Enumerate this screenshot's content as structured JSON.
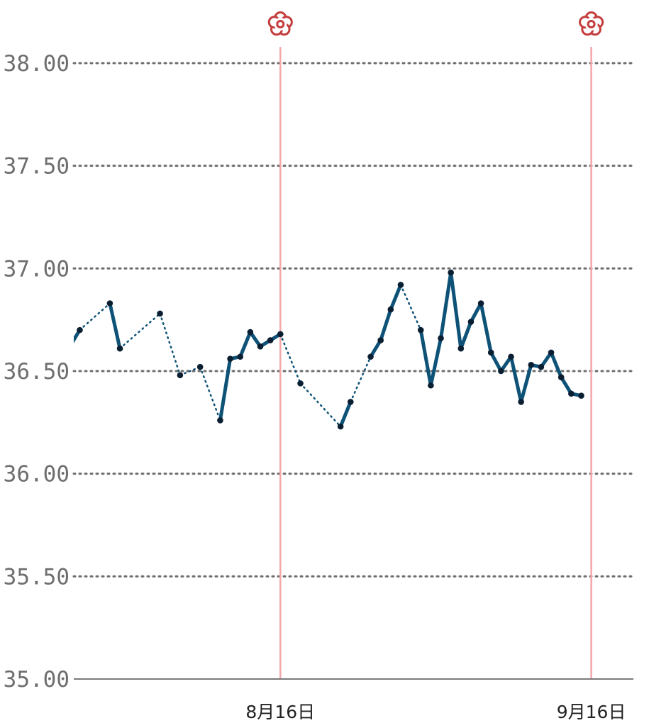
{
  "chart_data": {
    "type": "line",
    "title": "",
    "xlabel": "",
    "ylabel": "",
    "ylim": [
      35.0,
      38.0
    ],
    "yticks": [
      "35.00",
      "35.50",
      "36.00",
      "36.50",
      "37.00",
      "37.50",
      "38.00"
    ],
    "xrange": [
      "07-26",
      "09-21"
    ],
    "xticks": [
      {
        "date": "08-16",
        "label": "8月16日"
      },
      {
        "date": "09-16",
        "label": "9月16日"
      }
    ],
    "grid": {
      "horizontal": true,
      "style": "dotted"
    },
    "period_markers": [
      "08-16",
      "09-16"
    ],
    "line_color": "#0e5277",
    "point_color": "#0b1f33",
    "marker_color": "#f4a7ab",
    "flower_color": "#c43c3c",
    "series": [
      {
        "points": [
          {
            "x": "07-26",
            "y": 36.62
          },
          {
            "x": "07-27",
            "y": 36.7
          },
          {
            "x": "07-30",
            "y": 36.83
          },
          {
            "x": "07-31",
            "y": 36.61
          },
          {
            "x": "08-04",
            "y": 36.78
          },
          {
            "x": "08-06",
            "y": 36.48
          },
          {
            "x": "08-08",
            "y": 36.52
          },
          {
            "x": "08-10",
            "y": 36.26
          },
          {
            "x": "08-11",
            "y": 36.56
          },
          {
            "x": "08-12",
            "y": 36.57
          },
          {
            "x": "08-13",
            "y": 36.69
          },
          {
            "x": "08-14",
            "y": 36.62
          },
          {
            "x": "08-15",
            "y": 36.65
          },
          {
            "x": "08-16",
            "y": 36.68
          },
          {
            "x": "08-18",
            "y": 36.44
          },
          {
            "x": "08-22",
            "y": 36.23
          },
          {
            "x": "08-23",
            "y": 36.35
          },
          {
            "x": "08-25",
            "y": 36.57
          },
          {
            "x": "08-26",
            "y": 36.65
          },
          {
            "x": "08-27",
            "y": 36.8
          },
          {
            "x": "08-28",
            "y": 36.92
          },
          {
            "x": "08-30",
            "y": 36.7
          },
          {
            "x": "08-31",
            "y": 36.43
          },
          {
            "x": "09-01",
            "y": 36.66
          },
          {
            "x": "09-02",
            "y": 36.98
          },
          {
            "x": "09-03",
            "y": 36.61
          },
          {
            "x": "09-04",
            "y": 36.74
          },
          {
            "x": "09-05",
            "y": 36.83
          },
          {
            "x": "09-06",
            "y": 36.59
          },
          {
            "x": "09-07",
            "y": 36.5
          },
          {
            "x": "09-08",
            "y": 36.57
          },
          {
            "x": "09-09",
            "y": 36.35
          },
          {
            "x": "09-10",
            "y": 36.53
          },
          {
            "x": "09-11",
            "y": 36.52
          },
          {
            "x": "09-12",
            "y": 36.59
          },
          {
            "x": "09-13",
            "y": 36.47
          },
          {
            "x": "09-14",
            "y": 36.39
          },
          {
            "x": "09-15",
            "y": 36.38
          }
        ]
      }
    ]
  }
}
